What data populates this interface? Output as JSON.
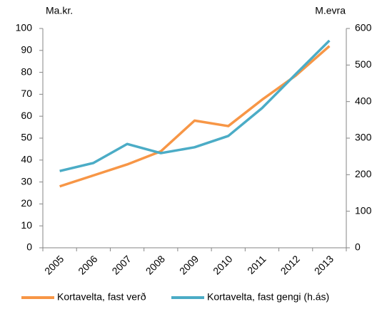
{
  "chart_data": {
    "type": "line",
    "y_label": "Ma.kr.",
    "y2_label": "M.evra",
    "categories": [
      "2005",
      "2006",
      "2007",
      "2008",
      "2009",
      "2010",
      "2011",
      "2012",
      "2013"
    ],
    "series": [
      {
        "name": "Kortavelta, fast verð",
        "color": "#f79646",
        "values": [
          28,
          33,
          38,
          44,
          58,
          55.5,
          67.5,
          78.5,
          92
        ]
      },
      {
        "name": "Kortavelta, fast gengi (h.ás)",
        "color": "#4bacc6",
        "axis": "y2",
        "values": [
          210,
          232,
          284,
          259,
          275,
          306,
          382,
          475,
          567
        ]
      }
    ],
    "ylim": [
      0,
      100
    ],
    "yticks": [
      0,
      10,
      20,
      30,
      40,
      50,
      60,
      70,
      80,
      90,
      100
    ],
    "y2lim": [
      0,
      600
    ],
    "y2ticks": [
      0,
      100,
      200,
      300,
      400,
      500,
      600
    ],
    "grid": false,
    "legend": "bottom"
  }
}
